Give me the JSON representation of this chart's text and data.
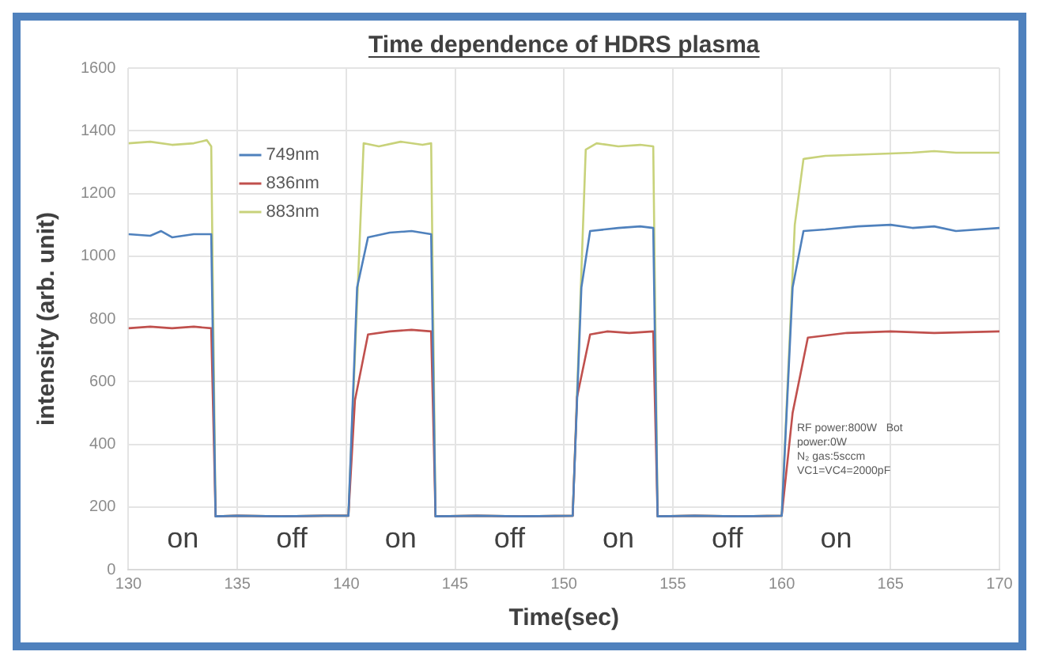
{
  "chart_data": {
    "type": "line",
    "title": "Time dependence of HDRS plasma",
    "xlabel": "Time(sec)",
    "ylabel": "intensity (arb. unit)",
    "xlim": [
      130,
      170
    ],
    "xticks": [
      130,
      135,
      140,
      145,
      150,
      155,
      160,
      165,
      170
    ],
    "ylim": [
      0,
      1600
    ],
    "yticks": [
      0,
      200,
      400,
      600,
      800,
      1000,
      1200,
      1400,
      1600
    ],
    "grid": true,
    "legend": "top left",
    "marker": "none",
    "line_style": "solid",
    "series": [
      {
        "name": "749nm",
        "color": "#4f81bd",
        "x": [
          130,
          131,
          131.5,
          132,
          133,
          133.8,
          134.0,
          135,
          137,
          139,
          140.1,
          140.5,
          141.0,
          142,
          143,
          143.9,
          144.1,
          146,
          148,
          150.4,
          150.8,
          151.2,
          152.5,
          153.5,
          154.1,
          154.3,
          156,
          158,
          160.0,
          160.5,
          161.0,
          162,
          163.5,
          165,
          166,
          167,
          168,
          170
        ],
        "values": [
          1070,
          1065,
          1080,
          1060,
          1070,
          1070,
          170,
          172,
          170,
          172,
          172,
          900,
          1060,
          1075,
          1080,
          1070,
          170,
          172,
          170,
          172,
          900,
          1080,
          1090,
          1095,
          1090,
          170,
          172,
          170,
          172,
          900,
          1080,
          1085,
          1095,
          1100,
          1090,
          1095,
          1080,
          1090
        ]
      },
      {
        "name": "836nm",
        "color": "#c0504d",
        "x": [
          130,
          131,
          132,
          133,
          133.8,
          134.0,
          135,
          137,
          139,
          140.1,
          140.4,
          141.0,
          142,
          143,
          143.9,
          144.1,
          146,
          148,
          150.4,
          150.6,
          151.2,
          152,
          153,
          154.1,
          154.3,
          156,
          158,
          160.0,
          160.5,
          161.2,
          163,
          165,
          167,
          170
        ],
        "values": [
          770,
          775,
          770,
          775,
          770,
          170,
          172,
          170,
          172,
          172,
          540,
          750,
          760,
          765,
          760,
          170,
          172,
          170,
          172,
          550,
          750,
          760,
          755,
          760,
          170,
          172,
          170,
          172,
          500,
          740,
          755,
          760,
          755,
          760
        ]
      },
      {
        "name": "883nm",
        "color": "#c8d27a",
        "x": [
          130,
          131,
          132,
          133,
          133.6,
          133.8,
          134.0,
          135,
          137,
          139,
          140.1,
          140.8,
          141.5,
          142.5,
          143.5,
          143.9,
          144.1,
          146,
          148,
          150.4,
          151.0,
          151.5,
          152.5,
          153.5,
          154.1,
          154.3,
          156,
          158,
          160.0,
          160.6,
          161.0,
          162,
          164,
          166,
          167,
          168,
          170
        ],
        "values": [
          1360,
          1365,
          1355,
          1360,
          1370,
          1350,
          170,
          172,
          170,
          172,
          172,
          1360,
          1350,
          1365,
          1355,
          1360,
          170,
          172,
          170,
          172,
          1340,
          1360,
          1350,
          1355,
          1350,
          170,
          172,
          170,
          172,
          1100,
          1310,
          1320,
          1325,
          1330,
          1335,
          1330,
          1330
        ]
      }
    ],
    "annotations": [
      "on",
      "off",
      "on",
      "off",
      "on",
      "off",
      "on",
      "RF power:800W   Bot\npower:0W\nN₂ gas:5sccm\nVC1=VC4=2000pF"
    ]
  }
}
